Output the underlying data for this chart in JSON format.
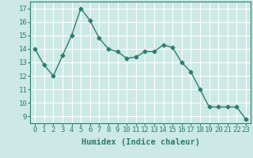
{
  "x": [
    0,
    1,
    2,
    3,
    4,
    5,
    6,
    7,
    8,
    9,
    10,
    11,
    12,
    13,
    14,
    15,
    16,
    17,
    18,
    19,
    20,
    21,
    22,
    23
  ],
  "y": [
    14.0,
    12.8,
    12.0,
    13.5,
    15.0,
    17.0,
    16.1,
    14.8,
    14.0,
    13.8,
    13.3,
    13.4,
    13.8,
    13.8,
    14.3,
    14.1,
    13.0,
    12.3,
    11.0,
    9.7,
    9.7,
    9.7,
    9.7,
    8.8
  ],
  "line_color": "#2e7d6e",
  "marker": "D",
  "marker_size": 2.5,
  "bg_color": "#cce9e5",
  "grid_color": "#ffffff",
  "tick_color": "#2e7d6e",
  "xlabel": "Humidex (Indice chaleur)",
  "xlabel_fontsize": 7.5,
  "tick_fontsize": 6.5,
  "ylim": [
    8.5,
    17.5
  ],
  "xlim": [
    -0.5,
    23.5
  ],
  "yticks": [
    9,
    10,
    11,
    12,
    13,
    14,
    15,
    16,
    17
  ],
  "xticks": [
    0,
    1,
    2,
    3,
    4,
    5,
    6,
    7,
    8,
    9,
    10,
    11,
    12,
    13,
    14,
    15,
    16,
    17,
    18,
    19,
    20,
    21,
    22,
    23
  ]
}
